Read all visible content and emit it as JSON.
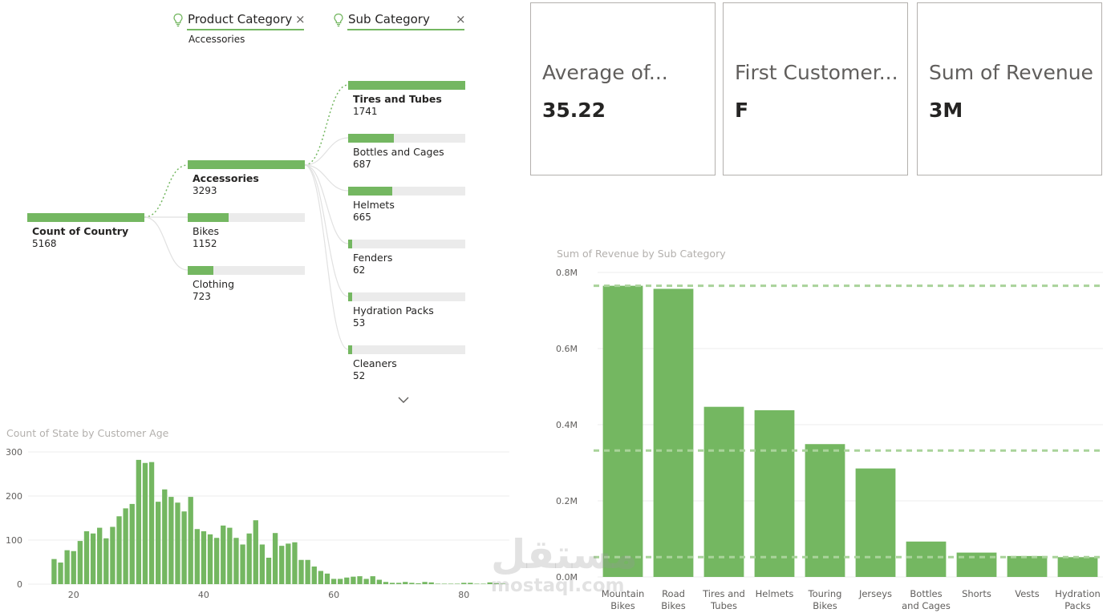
{
  "decomposition_tree": {
    "headers": [
      {
        "label": "Product Category",
        "filter": "Accessories"
      },
      {
        "label": "Sub Category",
        "filter": ""
      }
    ],
    "close_glyph": "×",
    "root": {
      "label": "Count of Country",
      "value": "5168",
      "fraction": 1
    },
    "level1": [
      {
        "label": "Accessories",
        "value": "3293",
        "fraction": 1,
        "selected": true
      },
      {
        "label": "Bikes",
        "value": "1152",
        "fraction": 0.35
      },
      {
        "label": "Clothing",
        "value": "723",
        "fraction": 0.22
      }
    ],
    "level2": [
      {
        "label": "Tires and Tubes",
        "value": "1741",
        "fraction": 1,
        "selected": true
      },
      {
        "label": "Bottles and Cages",
        "value": "687",
        "fraction": 0.39
      },
      {
        "label": "Helmets",
        "value": "665",
        "fraction": 0.38
      },
      {
        "label": "Fenders",
        "value": "62",
        "fraction": 0.036
      },
      {
        "label": "Hydration Packs",
        "value": "53",
        "fraction": 0.03
      },
      {
        "label": "Cleaners",
        "value": "52",
        "fraction": 0.03
      }
    ],
    "icons": {
      "header": "lightbulb-icon",
      "more": "chevron-down-icon",
      "close": "close-icon"
    }
  },
  "cards": [
    {
      "title": "Average of...",
      "value": "35.22"
    },
    {
      "title": "First Customer...",
      "value": "F"
    },
    {
      "title": "Sum of Revenue",
      "value": "3M"
    }
  ],
  "colors": {
    "accent": "#74b761",
    "track": "#ebebeb",
    "axis_text": "#605e5c",
    "title_text": "#b3b0ad"
  },
  "watermark": {
    "arabic": "مستقل",
    "latin": "mostaql.com"
  },
  "chart_data": [
    {
      "type": "bar",
      "title": "Count of State by Customer Age",
      "xlabel": "",
      "ylabel": "",
      "x_ticks": [
        20,
        40,
        60,
        80
      ],
      "y_ticks": [
        0,
        100,
        200,
        300
      ],
      "xlim": [
        13,
        87
      ],
      "ylim": [
        0,
        300
      ],
      "grid": true,
      "x": [
        17,
        18,
        19,
        20,
        21,
        22,
        23,
        24,
        25,
        26,
        27,
        28,
        29,
        30,
        31,
        32,
        33,
        34,
        35,
        36,
        37,
        38,
        39,
        40,
        41,
        42,
        43,
        44,
        45,
        46,
        47,
        48,
        49,
        50,
        51,
        52,
        53,
        54,
        55,
        56,
        57,
        58,
        59,
        60,
        61,
        62,
        63,
        64,
        65,
        66,
        67,
        68,
        69,
        70,
        71,
        72,
        73,
        74,
        75,
        76,
        77,
        78,
        79,
        80,
        81,
        82,
        83,
        84,
        85,
        86
      ],
      "values": [
        57,
        49,
        77,
        75,
        98,
        120,
        115,
        128,
        104,
        130,
        154,
        172,
        182,
        282,
        275,
        277,
        187,
        215,
        198,
        185,
        165,
        198,
        125,
        120,
        113,
        105,
        133,
        128,
        105,
        90,
        115,
        145,
        90,
        60,
        116,
        87,
        92,
        95,
        55,
        55,
        40,
        30,
        24,
        12,
        12,
        15,
        17,
        18,
        12,
        18,
        10,
        5,
        3,
        3,
        5,
        3,
        2,
        5,
        4,
        1,
        1,
        1,
        1,
        3,
        3,
        1,
        1,
        4,
        2,
        1
      ]
    },
    {
      "type": "bar",
      "title": "Sum of Revenue by Sub Category",
      "xlabel": "",
      "ylabel": "",
      "categories": [
        [
          "Mountain",
          "Bikes"
        ],
        [
          "Road",
          "Bikes"
        ],
        [
          "Tires and",
          "Tubes"
        ],
        [
          "Helmets"
        ],
        [
          "Touring",
          "Bikes"
        ],
        [
          "Jerseys"
        ],
        [
          "Bottles",
          "and Cages"
        ],
        [
          "Shorts"
        ],
        [
          "Vests"
        ],
        [
          "Hydration",
          "Packs"
        ]
      ],
      "values": [
        0.765,
        0.757,
        0.447,
        0.438,
        0.349,
        0.285,
        0.093,
        0.064,
        0.055,
        0.052
      ],
      "y_unit": "M",
      "y_ticks": [
        0,
        0.2,
        0.4,
        0.6,
        0.8
      ],
      "y_tick_labels": [
        "0.0M",
        "0.2M",
        "0.4M",
        "0.6M",
        "0.8M"
      ],
      "ylim": [
        0,
        0.8
      ],
      "reference_lines": [
        0.765,
        0.332,
        0.052
      ],
      "grid": true
    }
  ]
}
